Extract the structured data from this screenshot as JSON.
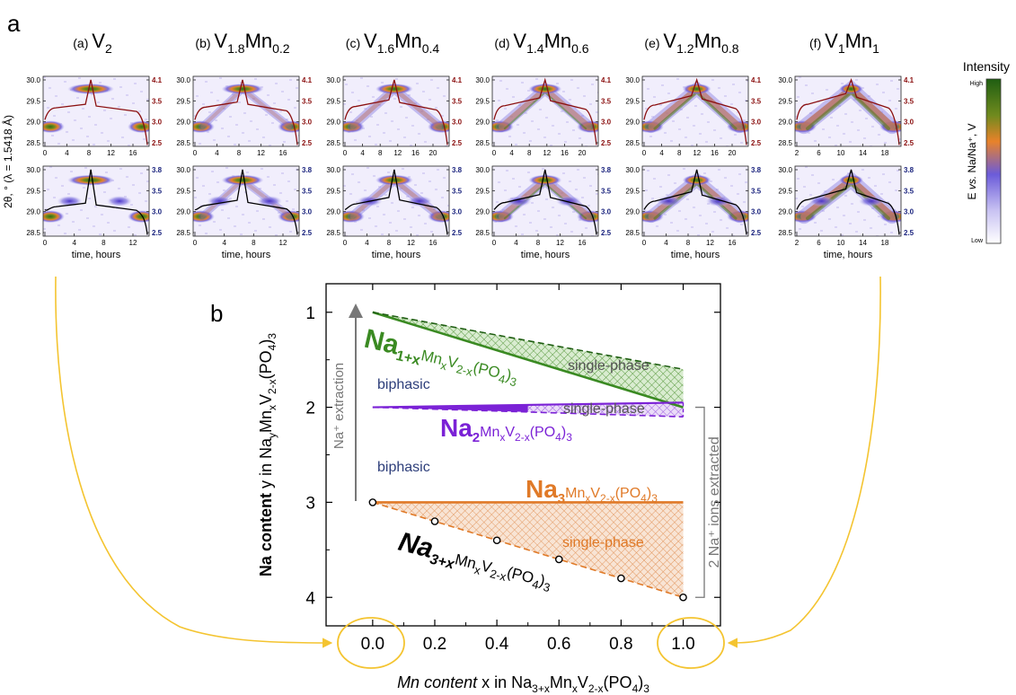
{
  "panel_a_label": "a",
  "panel_b_label": "b",
  "colors": {
    "heat_low": "#ffffff",
    "heat_mid": "#6b5bd9",
    "heat_orange": "#e8822a",
    "heat_high": "#2e6b1a",
    "charge_curve_top": "#8b1010",
    "charge_curve_bottom": "#000000",
    "right_axis_top": "#8b1010",
    "right_axis_bottom": "#1a237e",
    "green_phase": "#3a8a22",
    "purple_phase": "#7b22d6",
    "orange_phase": "#e07a28",
    "biphasic_text": "#2d3e7a",
    "gray_text": "#777777",
    "highlight_gold": "#f4c430"
  },
  "panel_a": {
    "left_axis_label": "2θ, ° (λ = 1.5418 Å)",
    "right_axis_label": "E vs. Na/Na⁺, V",
    "x_label": "time, hours",
    "colorbar": {
      "title": "Intensity",
      "high": "High",
      "low": "Low"
    },
    "y_ticks": [
      "30.0",
      "29.5",
      "29.0",
      "28.5"
    ],
    "right_ticks_top": [
      "4.1",
      "3.5",
      "3.0",
      "2.5"
    ],
    "right_ticks_bottom": [
      "3.8",
      "3.5",
      "3.0",
      "2.5"
    ],
    "columns": [
      {
        "label": "(a)",
        "el1": "V",
        "sub1": "2",
        "el2": "",
        "sub2": "",
        "xticks_top": [
          "0",
          "4",
          "8",
          "12",
          "16"
        ],
        "xticks_bottom": [
          "0",
          "4",
          "8",
          "12"
        ]
      },
      {
        "label": "(b)",
        "el1": "V",
        "sub1": "1.8",
        "el2": "Mn",
        "sub2": "0.2",
        "xticks_top": [
          "0",
          "4",
          "8",
          "12",
          "16"
        ],
        "xticks_bottom": [
          "0",
          "4",
          "8",
          "12"
        ]
      },
      {
        "label": "(c)",
        "el1": "V",
        "sub1": "1.6",
        "el2": "Mn",
        "sub2": "0.4",
        "xticks_top": [
          "0",
          "4",
          "8",
          "12",
          "16",
          "20"
        ],
        "xticks_bottom": [
          "0",
          "4",
          "8",
          "12",
          "16"
        ]
      },
      {
        "label": "(d)",
        "el1": "V",
        "sub1": "1.4",
        "el2": "Mn",
        "sub2": "0.6",
        "xticks_top": [
          "0",
          "4",
          "8",
          "12",
          "16",
          "20"
        ],
        "xticks_bottom": [
          "0",
          "4",
          "8",
          "12",
          "16"
        ]
      },
      {
        "label": "(e)",
        "el1": "V",
        "sub1": "1.2",
        "el2": "Mn",
        "sub2": "0.8",
        "xticks_top": [
          "0",
          "4",
          "8",
          "12",
          "16",
          "20"
        ],
        "xticks_bottom": [
          "0",
          "4",
          "8",
          "12",
          "16"
        ]
      },
      {
        "label": "(f)",
        "el1": "V",
        "sub1": "1",
        "el2": "Mn",
        "sub2": "1",
        "xticks_top": [
          "2",
          "6",
          "10",
          "14",
          "18"
        ],
        "xticks_bottom": [
          "2",
          "6",
          "10",
          "14",
          "18"
        ]
      }
    ]
  },
  "chart_data": {
    "type": "line",
    "xlabel": {
      "italic": "Mn content",
      "normal": " x in Na",
      "sub1": "3+x",
      "mid1": "Mn",
      "sub2": "x",
      "mid2": "V",
      "sub3": "2-x",
      "mid3": "(PO",
      "sub4": "4",
      "end": ")",
      "sub5": "3"
    },
    "ylabel": {
      "bold": "Na content",
      "normal": " y in Na",
      "sub1": "y",
      "mid1": "Mn",
      "sub2": "x",
      "mid2": "V",
      "sub3": "2-x",
      "mid3": "(PO",
      "sub4": "4",
      "end": ")",
      "sub5": "3"
    },
    "xlim": [
      -0.15,
      1.12
    ],
    "ylim": [
      0.7,
      4.3
    ],
    "y_inverted": true,
    "xticks": [
      "0.0",
      "0.2",
      "0.4",
      "0.6",
      "0.8",
      "1.0"
    ],
    "yticks": [
      "1",
      "2",
      "3",
      "4"
    ],
    "series": [
      {
        "name": "Na1+xMnxV2-x(PO4)3",
        "style": "solid",
        "x": [
          0.0,
          1.0
        ],
        "y": [
          1.0,
          2.0
        ]
      },
      {
        "name": "upper single-phase boundary",
        "style": "dashed",
        "x": [
          0.0,
          1.0
        ],
        "y": [
          1.0,
          1.6
        ]
      },
      {
        "name": "Na2MnxV2-x(PO4)3",
        "style": "solid",
        "x": [
          0.0,
          1.0
        ],
        "y": [
          2.0,
          1.95
        ]
      },
      {
        "name": "Na2 lower boundary",
        "style": "dashed",
        "x": [
          0.0,
          1.0
        ],
        "y": [
          2.0,
          2.1
        ]
      },
      {
        "name": "Na3MnxV2-x(PO4)3",
        "style": "solid",
        "x": [
          0.0,
          1.0
        ],
        "y": [
          3.0,
          3.0
        ]
      },
      {
        "name": "Na3+xMnxV2-x(PO4)3",
        "style": "dashed",
        "x": [
          0.0,
          1.0
        ],
        "y": [
          3.0,
          4.0
        ]
      }
    ],
    "points": {
      "x": [
        0.0,
        0.2,
        0.4,
        0.6,
        0.8,
        1.0
      ],
      "y": [
        3.0,
        3.2,
        3.4,
        3.6,
        3.8,
        4.0
      ]
    },
    "annotations": {
      "single_phase": "single-phase",
      "biphasic": "biphasic",
      "extraction": "Na⁺ extraction",
      "ions_extracted": "2 Na⁺ ions extracted",
      "green_formula": {
        "main": "Na",
        "sub": "1+x",
        "rest": "Mn",
        "s2": "x",
        "r2": "V",
        "s3": "2-x",
        "r3": "(PO",
        "s4": "4",
        "r4": ")",
        "s5": "3"
      },
      "purple_formula": {
        "main": "Na",
        "sub": "2",
        "rest": "Mn",
        "s2": "x",
        "r2": "V",
        "s3": "2-x",
        "r3": "(PO",
        "s4": "4",
        "r4": ")",
        "s5": "3"
      },
      "orange_formula": {
        "main": "Na",
        "sub": "3",
        "rest": "Mn",
        "s2": "x",
        "r2": "V",
        "s3": "2-x",
        "r3": "(PO",
        "s4": "4",
        "r4": ")",
        "s5": "3"
      },
      "black_formula": {
        "main": "Na",
        "sub": "3+x",
        "rest": "Mn",
        "s2": "x",
        "r2": "V",
        "s3": "2-x",
        "r3": "(PO",
        "s4": "4",
        "r4": ")",
        "s5": "3"
      }
    }
  }
}
